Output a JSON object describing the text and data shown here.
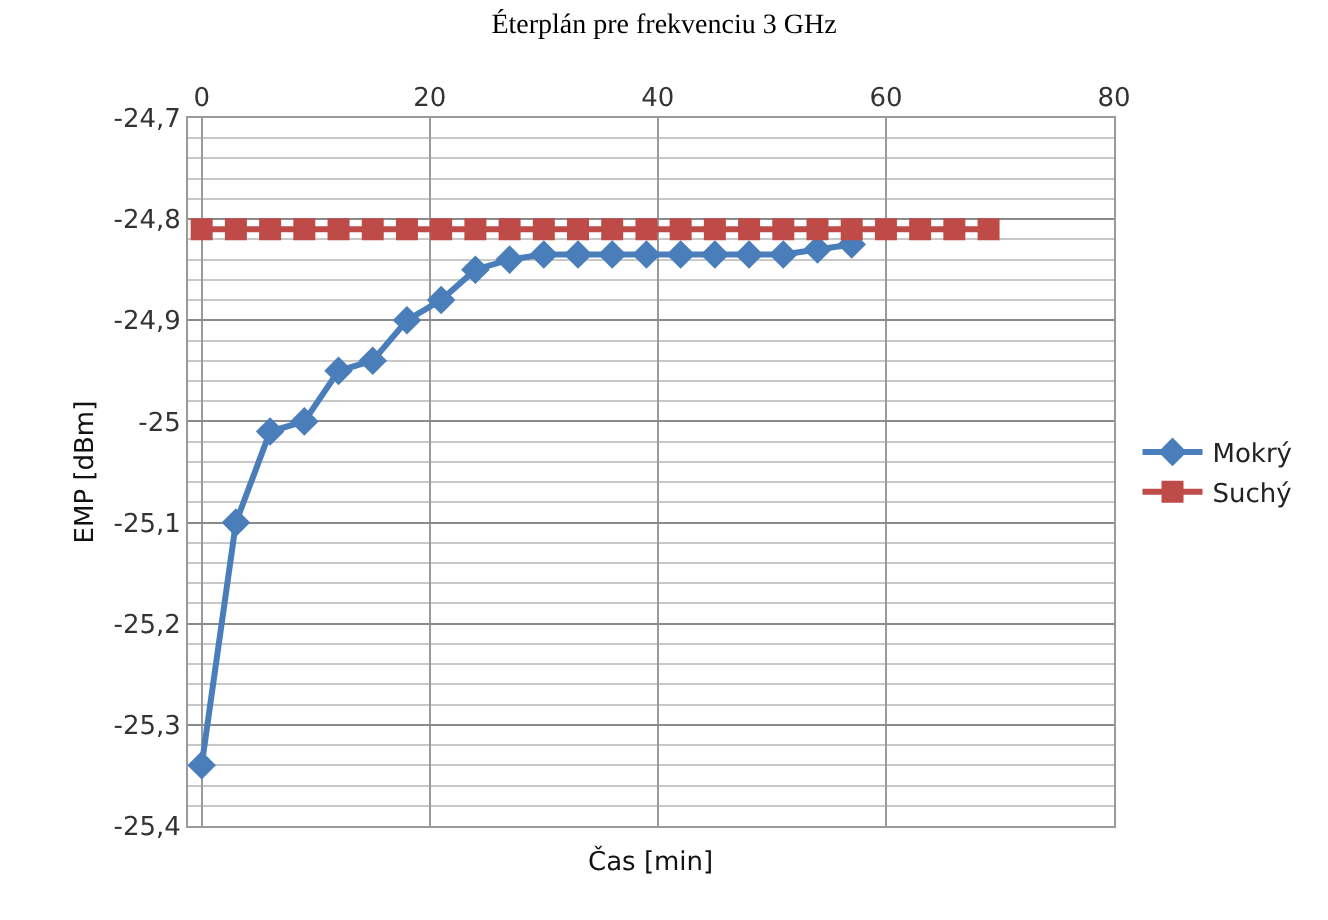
{
  "chart_data": {
    "type": "line",
    "title": "Éterplán pre frekvenciu 3 GHz",
    "xlabel": "Čas [min]",
    "ylabel": "EMP [dBm]",
    "series": [
      {
        "name": "Mokrý",
        "color": "#4a7ebb",
        "marker": "diamond",
        "x": [
          0,
          3,
          6,
          9,
          12,
          15,
          18,
          21,
          24,
          27,
          30,
          33,
          36,
          39,
          42,
          45,
          48,
          51,
          54,
          57
        ],
        "values": [
          -25.34,
          -25.1,
          -25.01,
          -25.0,
          -24.95,
          -24.94,
          -24.9,
          -24.88,
          -24.85,
          -24.84,
          -24.835,
          -24.835,
          -24.835,
          -24.835,
          -24.835,
          -24.835,
          -24.835,
          -24.835,
          -24.83,
          -24.825
        ]
      },
      {
        "name": "Suchý",
        "color": "#be4b48",
        "marker": "square",
        "x": [
          0,
          3,
          6,
          9,
          12,
          15,
          18,
          21,
          24,
          27,
          30,
          33,
          36,
          39,
          42,
          45,
          48,
          51,
          54,
          57,
          60,
          63,
          66,
          69
        ],
        "values": [
          -24.81,
          -24.81,
          -24.81,
          -24.81,
          -24.81,
          -24.81,
          -24.81,
          -24.81,
          -24.81,
          -24.81,
          -24.81,
          -24.81,
          -24.81,
          -24.81,
          -24.81,
          -24.81,
          -24.81,
          -24.81,
          -24.81,
          -24.81,
          -24.81,
          -24.81,
          -24.81,
          -24.81
        ]
      }
    ],
    "xlim": [
      -1.2,
      80
    ],
    "xticks": [
      0,
      20,
      40,
      60,
      80
    ],
    "ylim": [
      -25.4,
      -24.7
    ],
    "yticks": [
      {
        "value": -25.4,
        "label": "-25,4"
      },
      {
        "value": -25.3,
        "label": "-25,3"
      },
      {
        "value": -25.2,
        "label": "-25,2"
      },
      {
        "value": -25.1,
        "label": "-25,1"
      },
      {
        "value": -25.0,
        "label": "-25"
      },
      {
        "value": -24.9,
        "label": "-24,9"
      },
      {
        "value": -24.8,
        "label": "-24,8"
      },
      {
        "value": -24.7,
        "label": "-24,7"
      }
    ],
    "grid": true,
    "legend": "right",
    "line_style": "solid"
  }
}
